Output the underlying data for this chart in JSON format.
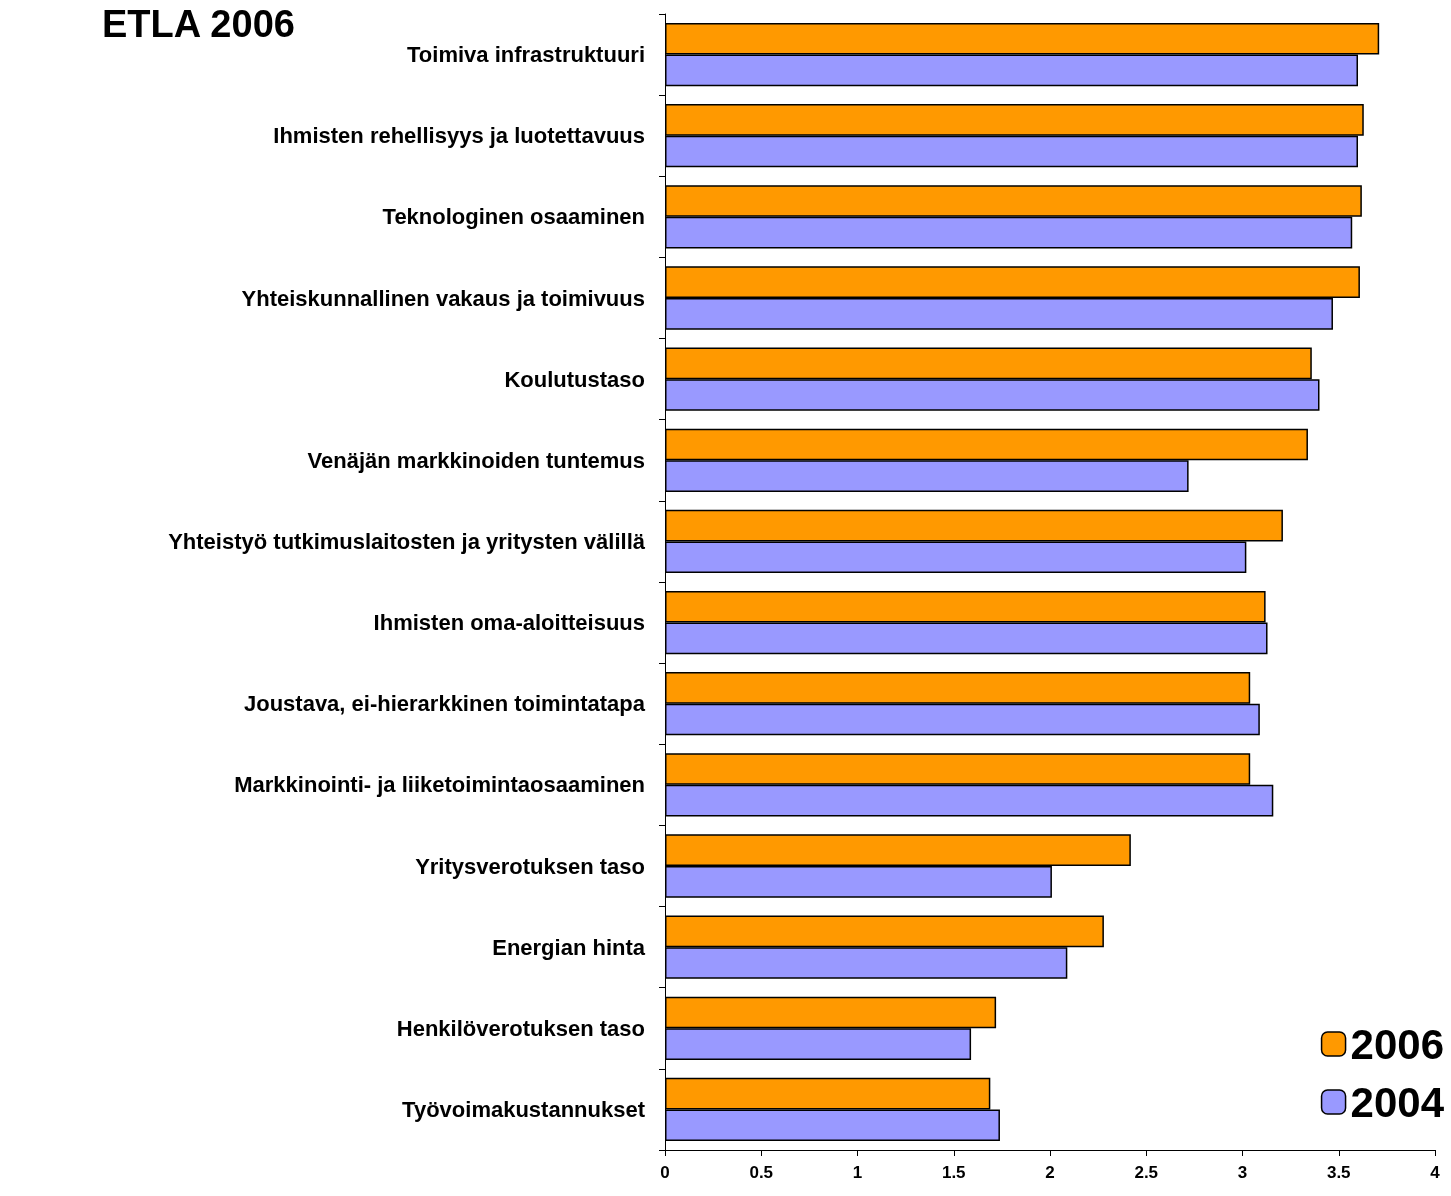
{
  "chart_data": {
    "type": "bar",
    "orientation": "horizontal",
    "title": "ETLA 2006",
    "categories": [
      "Toimiva infrastruktuuri",
      "Ihmisten rehellisyys ja luotettavuus",
      "Teknologinen osaaminen",
      "Yhteiskunnallinen vakaus ja toimivuus",
      "Koulutustaso",
      "Venäjän markkinoiden tuntemus",
      "Yhteistyö tutkimuslaitosten ja yritysten välillä",
      "Ihmisten oma-aloitteisuus",
      "Joustava, ei-hierarkkinen toimintatapa",
      "Markkinointi- ja liiketoimintaosaaminen",
      "Yritysverotuksen taso",
      "Energian hinta",
      "Henkilöverotuksen taso",
      "Työvoimakustannukset"
    ],
    "series": [
      {
        "name": "2006",
        "color": "#ff9900",
        "values": [
          3.71,
          3.63,
          3.62,
          3.61,
          3.36,
          3.34,
          3.21,
          3.12,
          3.04,
          3.04,
          2.42,
          2.28,
          1.72,
          1.69
        ]
      },
      {
        "name": "2004",
        "color": "#9999ff",
        "values": [
          3.6,
          3.6,
          3.57,
          3.47,
          3.4,
          2.72,
          3.02,
          3.13,
          3.09,
          3.16,
          2.01,
          2.09,
          1.59,
          1.74
        ]
      }
    ],
    "xlim": [
      0,
      4
    ],
    "xticks": [
      0,
      0.5,
      1,
      1.5,
      2,
      2.5,
      3,
      3.5,
      4
    ],
    "grid": false,
    "legend": "bottom right"
  }
}
